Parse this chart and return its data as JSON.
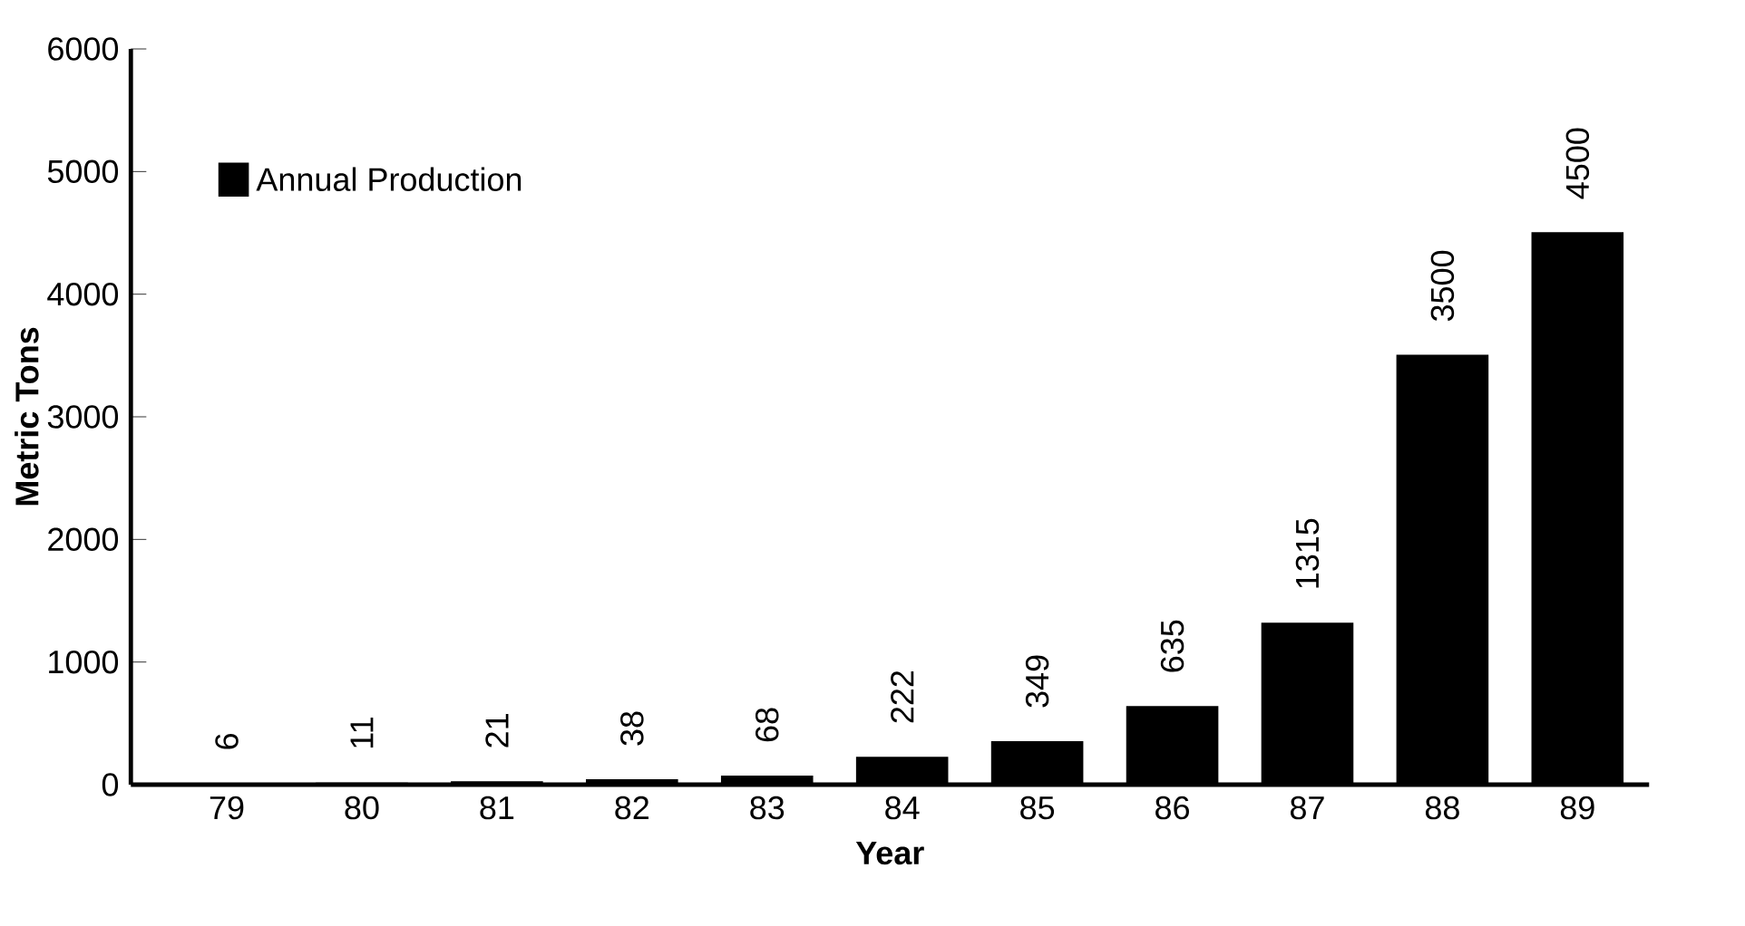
{
  "chart_data": {
    "type": "bar",
    "xlabel": "Year",
    "ylabel": "Metric Tons",
    "categories": [
      "79",
      "80",
      "81",
      "82",
      "83",
      "84",
      "85",
      "86",
      "87",
      "88",
      "89"
    ],
    "series": [
      {
        "name": "Annual Production",
        "color": "#000000",
        "values": [
          6,
          11,
          21,
          38,
          68,
          222,
          349,
          635,
          1315,
          3500,
          4500
        ]
      }
    ],
    "ylim": [
      0,
      6000
    ],
    "yticks": [
      0,
      1000,
      2000,
      3000,
      4000,
      5000,
      6000
    ],
    "data_labels": true,
    "legend": "top left"
  }
}
